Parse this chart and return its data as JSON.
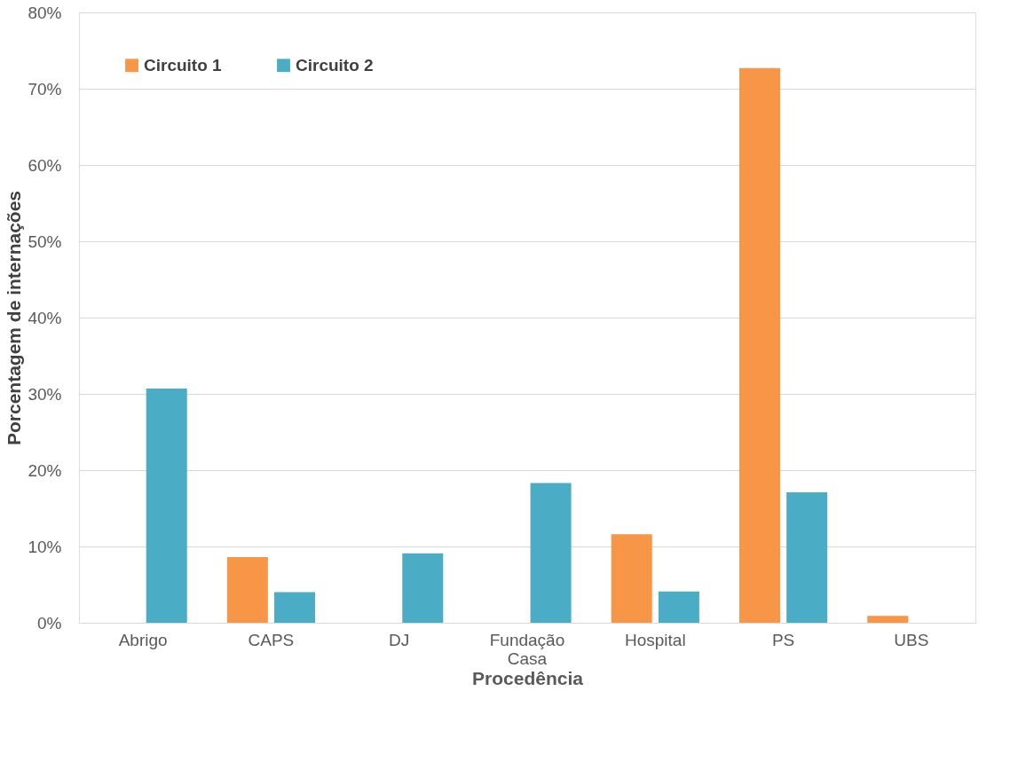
{
  "chart_data": {
    "type": "bar",
    "xlabel": "Procedência",
    "ylabel": "Porcentagem de internações",
    "categories": [
      "Abrigo",
      "CAPS",
      "DJ",
      "Fundação Casa",
      "Hospital",
      "PS",
      "UBS"
    ],
    "series": [
      {
        "name": "Circuito 1",
        "color": "#f79646",
        "values": [
          null,
          8.6,
          null,
          null,
          11.6,
          72.7,
          0.9
        ]
      },
      {
        "name": "Circuito 2",
        "color": "#4bacc6",
        "values": [
          30.7,
          4.0,
          9.1,
          18.3,
          4.1,
          17.1,
          null
        ]
      }
    ],
    "ylim": [
      0,
      80
    ],
    "yticks": [
      {
        "value": 0,
        "label": "0%"
      },
      {
        "value": 10,
        "label": "10%"
      },
      {
        "value": 20,
        "label": "20%"
      },
      {
        "value": 30,
        "label": "30%"
      },
      {
        "value": 40,
        "label": "40%"
      },
      {
        "value": 50,
        "label": "50%"
      },
      {
        "value": 60,
        "label": "60%"
      },
      {
        "value": 70,
        "label": "70%"
      },
      {
        "value": 80,
        "label": "80%"
      }
    ],
    "grid": "y",
    "legend": "top left"
  }
}
